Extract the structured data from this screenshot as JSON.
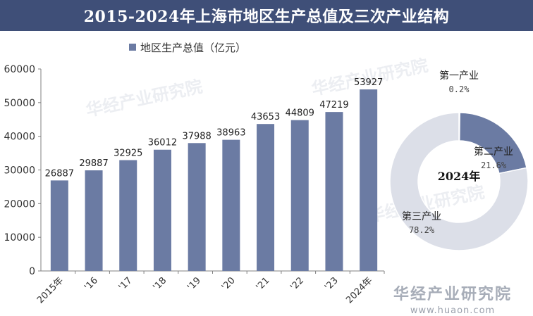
{
  "title": "2015-2024年上海市地区生产总值及三次产业结构",
  "watermark": "华经产业研究院",
  "watermark_url": "www.huaon.com",
  "chart_data": [
    {
      "type": "bar",
      "legend": "地区生产总值（亿元）",
      "categories": [
        "2015年",
        "'16",
        "'17",
        "'18",
        "'19",
        "'20",
        "'21",
        "'22",
        "'23",
        "2024年"
      ],
      "values": [
        26887,
        29887,
        32925,
        36012,
        37988,
        38963,
        43653,
        44809,
        47219,
        53927
      ],
      "ylim": [
        0,
        60000
      ],
      "yticks": [
        "0",
        "10000",
        "20000",
        "30000",
        "40000",
        "50000",
        "60000"
      ],
      "bar_color": "#6b7ba3",
      "legend_position": "top"
    },
    {
      "type": "pie",
      "center_label": "2024年",
      "slices": [
        {
          "name": "第一产业",
          "value": 0.2,
          "label": "0.2%",
          "color": "#d9dbe5"
        },
        {
          "name": "第二产业",
          "value": 21.6,
          "label": "21.6%",
          "color": "#6b7ba3"
        },
        {
          "name": "第三产业",
          "value": 78.2,
          "label": "78.2%",
          "color": "#dcdfe8"
        }
      ]
    }
  ]
}
